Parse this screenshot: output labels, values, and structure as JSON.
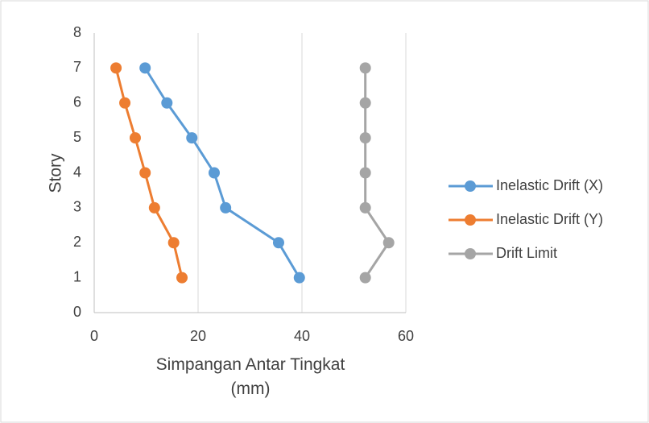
{
  "chart_data": {
    "type": "scatter",
    "x_label": "Simpangan Antar Tingkat (mm)",
    "y_label": "Story",
    "xlim": [
      0,
      60
    ],
    "xticks": [
      0,
      20,
      40,
      60
    ],
    "ylim": [
      0,
      8
    ],
    "yticks": [
      0,
      1,
      2,
      3,
      4,
      5,
      6,
      7,
      8
    ],
    "grid": "x",
    "legend": "right",
    "series": [
      {
        "name": "Inelastic Drift (X)",
        "color": "#5b9bd5",
        "x": [
          39.5,
          35.5,
          25.3,
          23.1,
          18.8,
          14.0,
          9.8
        ],
        "values": [
          1,
          2,
          3,
          4,
          5,
          6,
          7
        ]
      },
      {
        "name": "Inelastic Drift (Y)",
        "color": "#ed7d31",
        "x": [
          16.9,
          15.3,
          11.6,
          9.8,
          7.9,
          5.9,
          4.2
        ],
        "values": [
          1,
          2,
          3,
          4,
          5,
          6,
          7
        ]
      },
      {
        "name": "Drift Limit",
        "color": "#a5a5a5",
        "x": [
          52.2,
          56.7,
          52.2,
          52.2,
          52.2,
          52.2,
          52.2
        ],
        "values": [
          1,
          2,
          3,
          4,
          5,
          6,
          7
        ]
      }
    ]
  }
}
